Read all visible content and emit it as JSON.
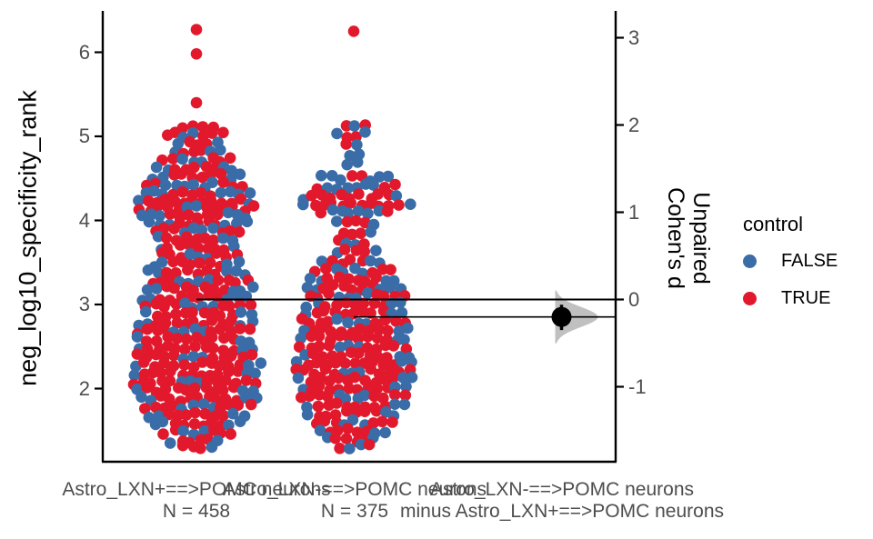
{
  "chart_data": {
    "type": "scatter",
    "subtype": "beeswarm-estimation-plot",
    "y_axis": {
      "title": "neg_log10_specificity_rank",
      "ticks": [
        6,
        5,
        4,
        3,
        2
      ],
      "range": [
        1.2,
        6.45
      ]
    },
    "effect_axis": {
      "title_line1": "Unpaired",
      "title_line2": "Cohen's d",
      "ticks": [
        3,
        2,
        1,
        0,
        -1
      ],
      "range": [
        -1.85,
        3.2
      ]
    },
    "legend": {
      "title": "control",
      "items": [
        {
          "label": "FALSE",
          "color": "#3A6CA8"
        },
        {
          "label": "TRUE",
          "color": "#E2192C"
        }
      ]
    },
    "x_labels": [
      {
        "line1": "Astro_LXN+==>POMC neurons",
        "line2": "N = 458"
      },
      {
        "line1": "Astro_LXN-==>POMC neurons",
        "line2": "N = 375"
      },
      {
        "line1": "Astro_LXN-==>POMC neurons",
        "line2": "minus Astro_LXN+==>POMC neurons"
      }
    ],
    "groups": [
      {
        "label": "Astro_LXN+==>POMC neurons",
        "n": 458,
        "mean": 3.06,
        "bands": [
          [
            6.27,
            1,
            1
          ],
          [
            5.98,
            1,
            1
          ],
          [
            5.4,
            1,
            1
          ],
          [
            5.12,
            4,
            4
          ],
          [
            5.02,
            7,
            5
          ],
          [
            4.92,
            5,
            3
          ],
          [
            4.82,
            6,
            3
          ],
          [
            4.72,
            8,
            5
          ],
          [
            4.62,
            9,
            5
          ],
          [
            4.52,
            10,
            6
          ],
          [
            4.42,
            11,
            5
          ],
          [
            4.32,
            12,
            5
          ],
          [
            4.22,
            13,
            11
          ],
          [
            4.14,
            13,
            11
          ],
          [
            4.06,
            12,
            6
          ],
          [
            3.97,
            11,
            5
          ],
          [
            3.88,
            10,
            6
          ],
          [
            3.78,
            9,
            6
          ],
          [
            3.68,
            9,
            7
          ],
          [
            3.58,
            9,
            6
          ],
          [
            3.48,
            10,
            6
          ],
          [
            3.38,
            11,
            6
          ],
          [
            3.28,
            11,
            7
          ],
          [
            3.18,
            12,
            7
          ],
          [
            3.08,
            12,
            7
          ],
          [
            2.98,
            12,
            8
          ],
          [
            2.88,
            12,
            9
          ],
          [
            2.78,
            13,
            9
          ],
          [
            2.68,
            13,
            9
          ],
          [
            2.58,
            13,
            10
          ],
          [
            2.48,
            13,
            10
          ],
          [
            2.38,
            13,
            10
          ],
          [
            2.28,
            14,
            11
          ],
          [
            2.18,
            14,
            11
          ],
          [
            2.08,
            14,
            11
          ],
          [
            1.98,
            13,
            10
          ],
          [
            1.88,
            13,
            9
          ],
          [
            1.78,
            12,
            8
          ],
          [
            1.68,
            11,
            7
          ],
          [
            1.58,
            10,
            6
          ],
          [
            1.48,
            8,
            5
          ],
          [
            1.38,
            6,
            4
          ],
          [
            1.3,
            4,
            3
          ]
        ]
      },
      {
        "label": "Astro_LXN-==>POMC neurons",
        "n": 375,
        "mean": 2.85,
        "bands": [
          [
            6.25,
            1,
            1
          ],
          [
            5.1,
            3,
            2
          ],
          [
            5.02,
            4,
            2
          ],
          [
            4.9,
            2,
            1
          ],
          [
            4.78,
            2,
            0
          ],
          [
            4.66,
            2,
            0
          ],
          [
            4.5,
            8,
            2
          ],
          [
            4.4,
            9,
            3
          ],
          [
            4.28,
            11,
            9
          ],
          [
            4.2,
            12,
            10
          ],
          [
            4.1,
            8,
            2
          ],
          [
            3.98,
            5,
            3
          ],
          [
            3.86,
            4,
            3
          ],
          [
            3.74,
            4,
            2
          ],
          [
            3.62,
            5,
            3
          ],
          [
            3.5,
            7,
            4
          ],
          [
            3.4,
            9,
            5
          ],
          [
            3.3,
            10,
            6
          ],
          [
            3.2,
            11,
            6
          ],
          [
            3.1,
            11,
            7
          ],
          [
            3.0,
            11,
            7
          ],
          [
            2.9,
            11,
            8
          ],
          [
            2.8,
            12,
            8
          ],
          [
            2.7,
            12,
            9
          ],
          [
            2.6,
            12,
            9
          ],
          [
            2.5,
            12,
            9
          ],
          [
            2.4,
            12,
            9
          ],
          [
            2.3,
            13,
            10
          ],
          [
            2.2,
            13,
            10
          ],
          [
            2.1,
            13,
            10
          ],
          [
            2.0,
            12,
            9
          ],
          [
            1.9,
            12,
            8
          ],
          [
            1.8,
            11,
            8
          ],
          [
            1.7,
            10,
            7
          ],
          [
            1.6,
            9,
            6
          ],
          [
            1.5,
            8,
            5
          ],
          [
            1.4,
            6,
            4
          ],
          [
            1.3,
            4,
            2
          ]
        ]
      }
    ],
    "effect_size": {
      "comparison": "Astro_LXN-==>POMC neurons minus Astro_LXN+==>POMC neurons",
      "statistic": "Unpaired Cohen's d",
      "d": -0.2,
      "ci_low": -0.35,
      "ci_high": -0.06
    },
    "style": {
      "violin_color": "#b9b9b9",
      "marker_color": "#000000",
      "axis_color": "#000000",
      "tick_text_color": "#4d4d4d"
    }
  }
}
